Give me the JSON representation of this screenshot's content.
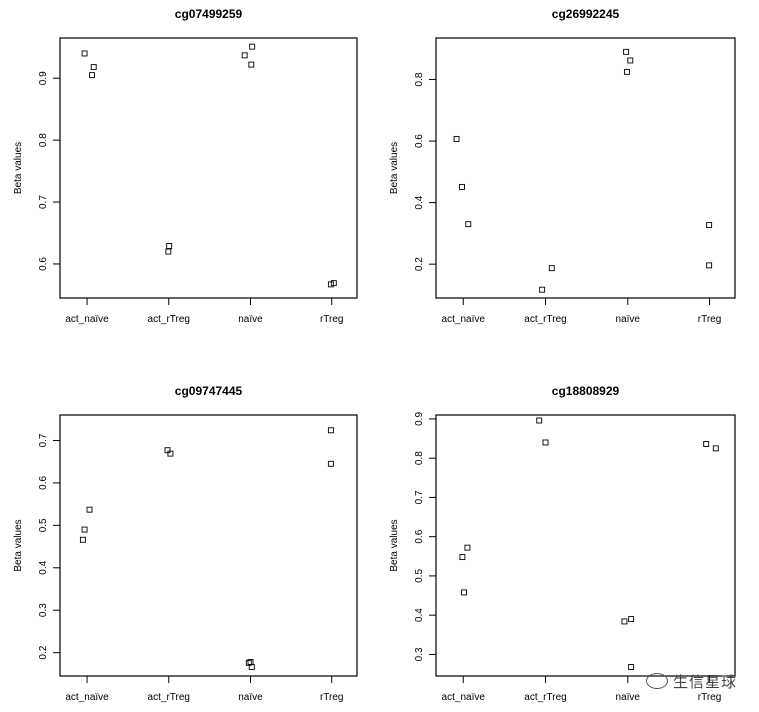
{
  "chart_data": [
    {
      "type": "scatter",
      "title": "cg07499259",
      "ylabel": "Beta values",
      "xlabel": "",
      "categories": [
        "act_naïve",
        "act_rTreg",
        "naïve",
        "rTreg"
      ],
      "ylim": [
        0.545,
        0.965
      ],
      "yticks": [
        0.6,
        0.7,
        0.8,
        0.9
      ],
      "points": [
        {
          "group": "act_naïve",
          "jitter": -0.06,
          "y": 0.94
        },
        {
          "group": "act_naïve",
          "jitter": 0.12,
          "y": 0.905
        },
        {
          "group": "act_naïve",
          "jitter": 0.16,
          "y": 0.918
        },
        {
          "group": "act_rTreg",
          "jitter": -0.01,
          "y": 0.62
        },
        {
          "group": "act_rTreg",
          "jitter": 0.01,
          "y": 0.629
        },
        {
          "group": "naïve",
          "jitter": -0.14,
          "y": 0.937
        },
        {
          "group": "naïve",
          "jitter": 0.02,
          "y": 0.922
        },
        {
          "group": "naïve",
          "jitter": 0.04,
          "y": 0.951
        },
        {
          "group": "rTreg",
          "jitter": -0.02,
          "y": 0.567
        },
        {
          "group": "rTreg",
          "jitter": 0.05,
          "y": 0.569
        }
      ]
    },
    {
      "type": "scatter",
      "title": "cg26992245",
      "ylabel": "Beta values",
      "xlabel": "",
      "categories": [
        "act_naïve",
        "act_rTreg",
        "naïve",
        "rTreg"
      ],
      "ylim": [
        0.09,
        0.935
      ],
      "yticks": [
        0.2,
        0.4,
        0.6,
        0.8
      ],
      "points": [
        {
          "group": "act_naïve",
          "jitter": -0.16,
          "y": 0.607
        },
        {
          "group": "act_naïve",
          "jitter": -0.03,
          "y": 0.451
        },
        {
          "group": "act_naïve",
          "jitter": 0.12,
          "y": 0.33
        },
        {
          "group": "act_rTreg",
          "jitter": -0.08,
          "y": 0.117
        },
        {
          "group": "act_rTreg",
          "jitter": 0.15,
          "y": 0.187
        },
        {
          "group": "naïve",
          "jitter": -0.04,
          "y": 0.89
        },
        {
          "group": "naïve",
          "jitter": -0.02,
          "y": 0.825
        },
        {
          "group": "naïve",
          "jitter": 0.06,
          "y": 0.862
        },
        {
          "group": "rTreg",
          "jitter": -0.01,
          "y": 0.327
        },
        {
          "group": "rTreg",
          "jitter": -0.01,
          "y": 0.196
        }
      ]
    },
    {
      "type": "scatter",
      "title": "cg09747445",
      "ylabel": "Beta values",
      "xlabel": "",
      "categories": [
        "act_naïve",
        "act_rTreg",
        "naïve",
        "rTreg"
      ],
      "ylim": [
        0.145,
        0.76
      ],
      "yticks": [
        0.2,
        0.3,
        0.4,
        0.5,
        0.6,
        0.7
      ],
      "points": [
        {
          "group": "act_naïve",
          "jitter": -0.1,
          "y": 0.466
        },
        {
          "group": "act_naïve",
          "jitter": -0.06,
          "y": 0.49
        },
        {
          "group": "act_naïve",
          "jitter": 0.06,
          "y": 0.537
        },
        {
          "group": "act_rTreg",
          "jitter": -0.03,
          "y": 0.677
        },
        {
          "group": "act_rTreg",
          "jitter": 0.04,
          "y": 0.669
        },
        {
          "group": "naïve",
          "jitter": -0.04,
          "y": 0.176
        },
        {
          "group": "naïve",
          "jitter": 0.0,
          "y": 0.178
        },
        {
          "group": "naïve",
          "jitter": 0.03,
          "y": 0.166
        },
        {
          "group": "rTreg",
          "jitter": -0.02,
          "y": 0.724
        },
        {
          "group": "rTreg",
          "jitter": -0.02,
          "y": 0.645
        }
      ]
    },
    {
      "type": "scatter",
      "title": "cg18808929",
      "ylabel": "Beta values",
      "xlabel": "",
      "categories": [
        "act_naïve",
        "act_rTreg",
        "naïve",
        "rTreg"
      ],
      "ylim": [
        0.245,
        0.91
      ],
      "yticks": [
        0.3,
        0.4,
        0.5,
        0.6,
        0.7,
        0.8,
        0.9
      ],
      "points": [
        {
          "group": "act_naïve",
          "jitter": -0.02,
          "y": 0.548
        },
        {
          "group": "act_naïve",
          "jitter": 0.02,
          "y": 0.458
        },
        {
          "group": "act_naïve",
          "jitter": 0.1,
          "y": 0.572
        },
        {
          "group": "act_rTreg",
          "jitter": -0.15,
          "y": 0.896
        },
        {
          "group": "act_rTreg",
          "jitter": 0.0,
          "y": 0.84
        },
        {
          "group": "naïve",
          "jitter": -0.08,
          "y": 0.384
        },
        {
          "group": "naïve",
          "jitter": 0.08,
          "y": 0.39
        },
        {
          "group": "naïve",
          "jitter": 0.08,
          "y": 0.268
        },
        {
          "group": "rTreg",
          "jitter": -0.08,
          "y": 0.836
        },
        {
          "group": "rTreg",
          "jitter": 0.15,
          "y": 0.825
        }
      ]
    }
  ],
  "watermark": "生信星球"
}
